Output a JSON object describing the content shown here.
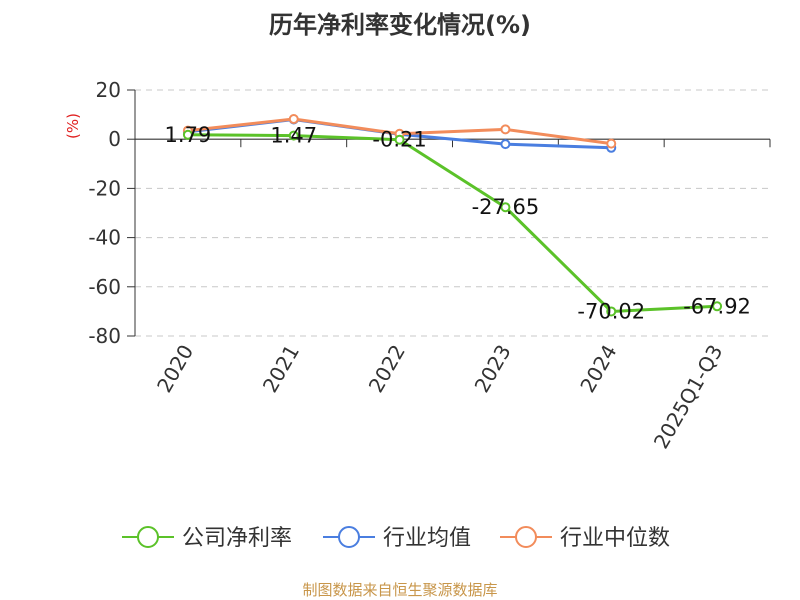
{
  "title": "历年净利率变化情况(%)",
  "source": "制图数据来自恒生聚源数据库",
  "chart_data": {
    "type": "line",
    "title": "历年净利率变化情况(%)",
    "ylabel": "(%)",
    "categories": [
      "2020",
      "2021",
      "2022",
      "2023",
      "2024",
      "2025Q1-Q3"
    ],
    "ylim": [
      -80,
      20
    ],
    "yticks": [
      20,
      0,
      -20,
      -40,
      -60,
      -80
    ],
    "grid": true,
    "legend_position": "bottom",
    "series": [
      {
        "name": "公司净利率",
        "color": "#5bc229",
        "values": [
          1.79,
          1.47,
          -0.21,
          -27.65,
          -70.02,
          -67.92
        ],
        "labels": [
          "1.79",
          "1.47",
          "-0.21",
          "-27.65",
          "-70.02",
          "-67.92"
        ]
      },
      {
        "name": "行业均值",
        "color": "#4a7ee0",
        "values": [
          3.0,
          8.0,
          2.0,
          -2.0,
          -3.5,
          null
        ]
      },
      {
        "name": "行业中位数",
        "color": "#f28c5b",
        "values": [
          3.5,
          8.2,
          2.2,
          4.0,
          -1.8,
          null
        ]
      }
    ]
  }
}
